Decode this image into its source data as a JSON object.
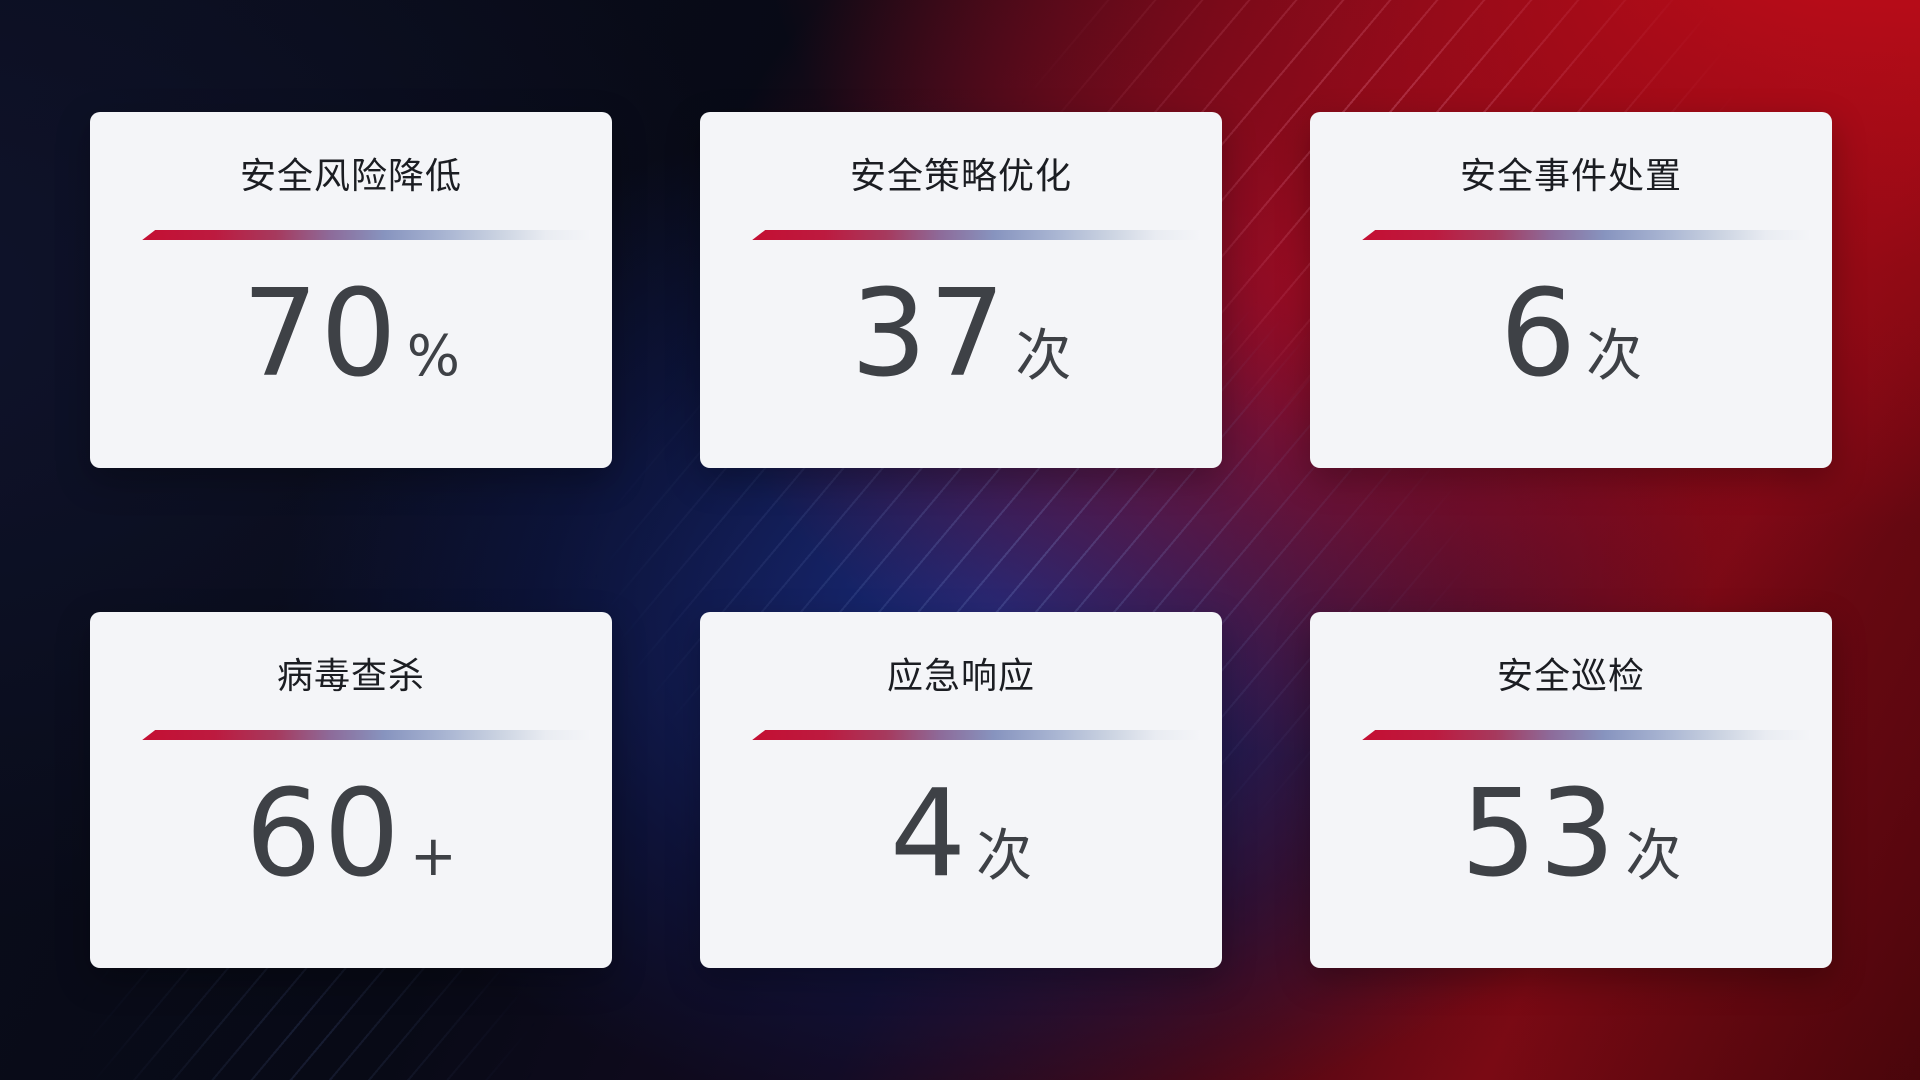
{
  "cards": [
    {
      "title": "安全风险降低",
      "value": "70",
      "unit": "%"
    },
    {
      "title": "安全策略优化",
      "value": "37",
      "unit": "次"
    },
    {
      "title": "安全事件处置",
      "value": "6",
      "unit": "次"
    },
    {
      "title": "病毒查杀",
      "value": "60",
      "unit": "+"
    },
    {
      "title": "应急响应",
      "value": "4",
      "unit": "次"
    },
    {
      "title": "安全巡检",
      "value": "53",
      "unit": "次"
    }
  ],
  "colors": {
    "accent_red": "#c40f33",
    "accent_slate_blue": "#8794bf",
    "card_background": "#f4f5f8",
    "title_color": "#1b1d22",
    "value_color": "#3e4146",
    "background_navy": "#0a0d1c",
    "background_crimson": "#a50d1c",
    "background_blue_glow": "#1b2d7d"
  }
}
